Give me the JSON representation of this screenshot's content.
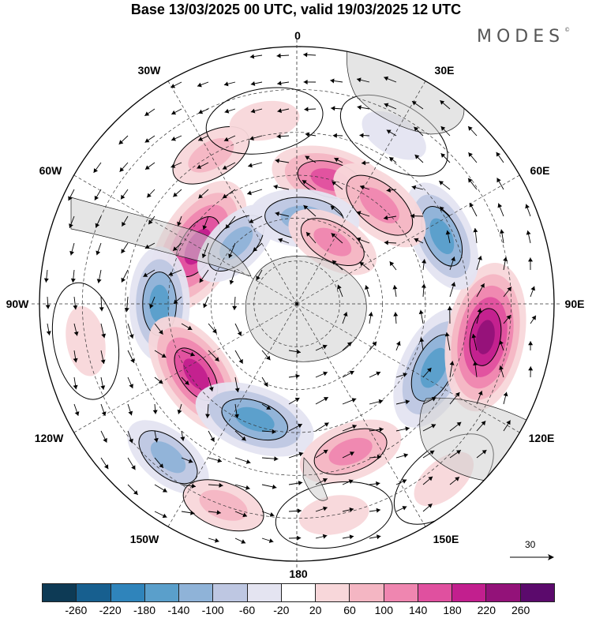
{
  "title": "Base 13/03/2025 00 UTC, valid 19/03/2025 12 UTC",
  "brand": "MODES",
  "brand_mark": "©",
  "longitude_labels": {
    "lon_0": "0",
    "lon_30e": "30E",
    "lon_60e": "60E",
    "lon_90e": "90E",
    "lon_120e": "120E",
    "lon_150e": "150E",
    "lon_180": "180",
    "lon_150w": "150W",
    "lon_120w": "120W",
    "lon_90w": "90W",
    "lon_60w": "60W",
    "lon_30w": "30W"
  },
  "reference_vector": {
    "label": "30"
  },
  "colorbar": {
    "colors": [
      "#0d3a55",
      "#175f8f",
      "#2f84bb",
      "#5a9fcb",
      "#8fb3d8",
      "#bec7e2",
      "#e4e4f1",
      "#ffffff",
      "#f8d7da",
      "#f4b6c3",
      "#ef86b0",
      "#e0509f",
      "#c21f8e",
      "#931279",
      "#5b0a6c"
    ],
    "ticks": [
      "-260",
      "-220",
      "-180",
      "-140",
      "-100",
      "-60",
      "-20",
      "20",
      "60",
      "100",
      "140",
      "180",
      "220",
      "260"
    ]
  },
  "anomaly_centers": [
    {
      "lon": 15,
      "colat": 45,
      "value": 170
    },
    {
      "lon": -60,
      "colat": 40,
      "value": 230
    },
    {
      "lon": -45,
      "colat": 30,
      "value": -120
    },
    {
      "lon": -90,
      "colat": 48,
      "value": -160
    },
    {
      "lon": -125,
      "colat": 43,
      "value": 200
    },
    {
      "lon": -160,
      "colat": 43,
      "value": -180
    },
    {
      "lon": -140,
      "colat": 70,
      "value": -120
    },
    {
      "lon": 160,
      "colat": 55,
      "value": 140
    },
    {
      "lon": 115,
      "colat": 53,
      "value": -190
    },
    {
      "lon": 100,
      "colat": 67,
      "value": 240
    },
    {
      "lon": 65,
      "colat": 56,
      "value": -160
    },
    {
      "lon": 40,
      "colat": 45,
      "value": 150
    },
    {
      "lon": 5,
      "colat": 30,
      "value": -150
    },
    {
      "lon": 30,
      "colat": 25,
      "value": 120
    },
    {
      "lon": -30,
      "colat": 60,
      "value": 90
    },
    {
      "lon": -100,
      "colat": 75,
      "value": 60
    },
    {
      "lon": -160,
      "colat": 75,
      "value": 90
    },
    {
      "lon": 170,
      "colat": 75,
      "value": 60
    },
    {
      "lon": 140,
      "colat": 80,
      "value": 60
    },
    {
      "lon": 30,
      "colat": 68,
      "value": -60
    },
    {
      "lon": -10,
      "colat": 65,
      "value": 60
    }
  ]
}
